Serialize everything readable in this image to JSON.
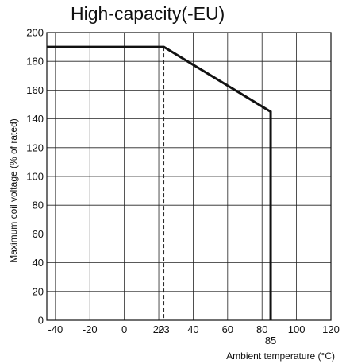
{
  "chart_data": {
    "type": "line",
    "title": "High-capacity(-EU)",
    "xlabel": "Ambient temperature (°C)",
    "ylabel": "Maximum coil voltage (% of rated)",
    "xlim": [
      -45,
      120
    ],
    "ylim": [
      0,
      200
    ],
    "x_ticks": [
      "-40",
      "-20",
      "0",
      "20",
      "23",
      "40",
      "60",
      "80",
      "100",
      "120"
    ],
    "x_tick_values": [
      -40,
      -20,
      0,
      20,
      23,
      40,
      60,
      80,
      100,
      120
    ],
    "x_extra_tick": {
      "label": "85",
      "value": 85
    },
    "y_ticks": [
      "0",
      "20",
      "40",
      "60",
      "80",
      "100",
      "120",
      "140",
      "160",
      "180",
      "200"
    ],
    "y_tick_values": [
      0,
      20,
      40,
      60,
      80,
      100,
      120,
      140,
      160,
      180,
      200
    ],
    "grid": true,
    "series": [
      {
        "x": [
          -45,
          23,
          85,
          85
        ],
        "y": [
          190,
          190,
          145,
          0
        ]
      }
    ],
    "reference_lines": [
      {
        "orientation": "vertical",
        "x": 23,
        "style": "dashed"
      }
    ]
  }
}
